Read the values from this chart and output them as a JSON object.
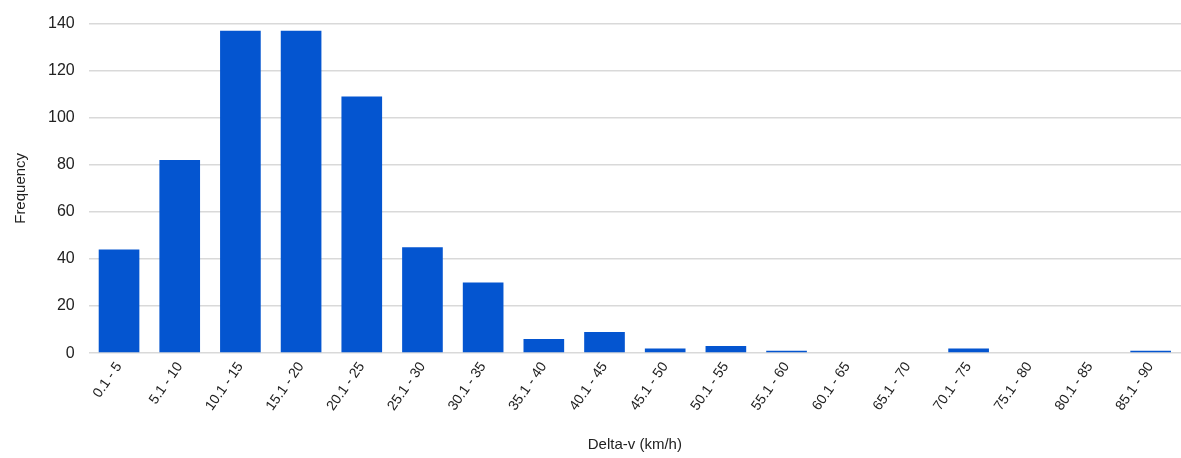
{
  "chart_data": {
    "type": "bar",
    "xlabel": "Delta-v (km/h)",
    "ylabel": "Frequency",
    "categories": [
      "0.1 - 5",
      "5.1 - 10",
      "10.1 - 15",
      "15.1 - 20",
      "20.1 - 25",
      "25.1 - 30",
      "30.1 - 35",
      "35.1 - 40",
      "40.1 - 45",
      "45.1 - 50",
      "50.1 - 55",
      "55.1 - 60",
      "60.1 - 65",
      "65.1 - 70",
      "70.1 - 75",
      "75.1 - 80",
      "80.1 - 85",
      "85.1 - 90"
    ],
    "values": [
      44,
      82,
      137,
      137,
      109,
      45,
      30,
      6,
      9,
      2,
      3,
      1,
      0,
      0,
      2,
      0,
      0,
      1
    ],
    "color": "#0455d0",
    "ylim": [
      0,
      140
    ],
    "yticks": [
      0,
      20,
      40,
      60,
      80,
      100,
      120,
      140
    ],
    "grid": "y",
    "legend": false
  }
}
